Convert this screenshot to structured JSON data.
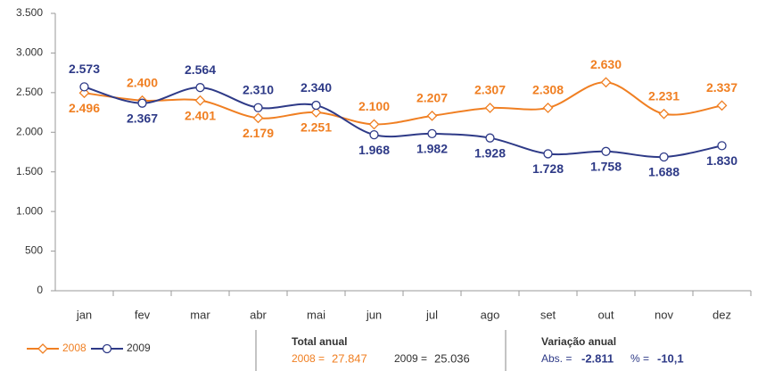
{
  "chart_data": {
    "type": "line",
    "categories": [
      "jan",
      "fev",
      "mar",
      "abr",
      "mai",
      "jun",
      "jul",
      "ago",
      "set",
      "out",
      "nov",
      "dez"
    ],
    "series": [
      {
        "name": "2008",
        "color": "#f07f22",
        "marker": "diamond",
        "values": [
          2496,
          2400,
          2401,
          2179,
          2251,
          2100,
          2207,
          2307,
          2308,
          2630,
          2231,
          2337
        ],
        "value_labels": [
          "2.496",
          "2.400",
          "2.401",
          "2.179",
          "2.251",
          "2.100",
          "2.207",
          "2.307",
          "2.308",
          "2.630",
          "2.231",
          "2.337"
        ]
      },
      {
        "name": "2009",
        "color": "#2e3a87",
        "marker": "circle",
        "values": [
          2573,
          2367,
          2564,
          2310,
          2340,
          1968,
          1982,
          1928,
          1728,
          1758,
          1688,
          1830
        ],
        "value_labels": [
          "2.573",
          "2.367",
          "2.564",
          "2.310",
          "2.340",
          "1.968",
          "1.982",
          "1.928",
          "1.728",
          "1.758",
          "1.688",
          "1.830"
        ]
      }
    ],
    "ylim": [
      0,
      3500
    ],
    "yticks": [
      0,
      500,
      {
        "value": 1000,
        "label": "1.000"
      },
      {
        "value": 1500,
        "label": "1.500"
      },
      {
        "value": 2000,
        "label": "2.000"
      },
      {
        "value": 2500,
        "label": "2.500"
      },
      {
        "value": 3000,
        "label": "3.000"
      },
      {
        "value": 3500,
        "label": "3.500"
      }
    ],
    "grid": false,
    "summary": [
      {
        "title": "Total anual",
        "items": [
          {
            "label": "2008 =",
            "value": "27.847"
          },
          {
            "label": "2009 =",
            "value": "25.036"
          }
        ]
      },
      {
        "title": "Variação anual",
        "items": [
          {
            "label": "Abs. =",
            "value": "-2.811"
          },
          {
            "label": "% =",
            "value": "-10,1"
          }
        ]
      }
    ]
  }
}
